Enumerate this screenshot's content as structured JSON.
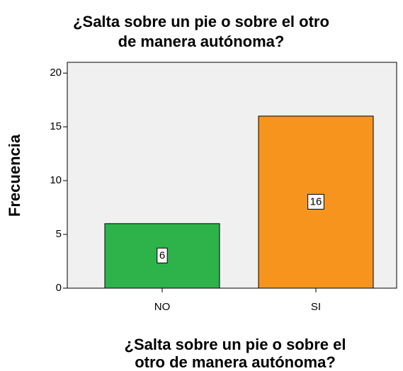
{
  "chart_data": {
    "type": "bar",
    "title": [
      "¿Salta sobre un pie o sobre el otro",
      "de manera autónoma?"
    ],
    "x_label": [
      "¿Salta sobre un pie o sobre el",
      "otro de manera autónoma?"
    ],
    "y_label": "Frecuencia",
    "categories": [
      "NO",
      "SI"
    ],
    "values": [
      6,
      16
    ],
    "colors": [
      "#2db34a",
      "#f7941d"
    ],
    "ylim": [
      0,
      21
    ],
    "yticks": [
      0,
      5,
      10,
      15,
      20
    ]
  }
}
